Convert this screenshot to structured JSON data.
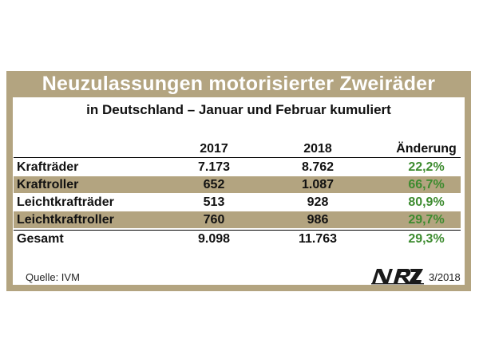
{
  "chart_data": {
    "type": "table",
    "title": "Neuzulassungen motorisierter Zweiräder",
    "subtitle": "in Deutschland – Januar und Februar kumuliert",
    "columns": [
      "2017",
      "2018",
      "Änderung"
    ],
    "rows": [
      {
        "label": "Krafträder",
        "v2017": "7.173",
        "v2018": "8.762",
        "change": "22,2%",
        "highlight": false
      },
      {
        "label": "Kraftroller",
        "v2017": "652",
        "v2018": "1.087",
        "change": "66,7%",
        "highlight": true
      },
      {
        "label": "Leichtkrafträder",
        "v2017": "513",
        "v2018": "928",
        "change": "80,9%",
        "highlight": false
      },
      {
        "label": "Leichtkraftroller",
        "v2017": "760",
        "v2018": "986",
        "change": "29,7%",
        "highlight": true
      }
    ],
    "total": {
      "label": "Gesamt",
      "v2017": "9.098",
      "v2018": "11.763",
      "change": "29,3%"
    },
    "source": "Quelle: IVM",
    "logo": "NRZ",
    "edition": "3/2018"
  },
  "colors": {
    "frame": "#b3a480",
    "change_text": "#3d8b2f",
    "header_text": "#ffffff"
  }
}
